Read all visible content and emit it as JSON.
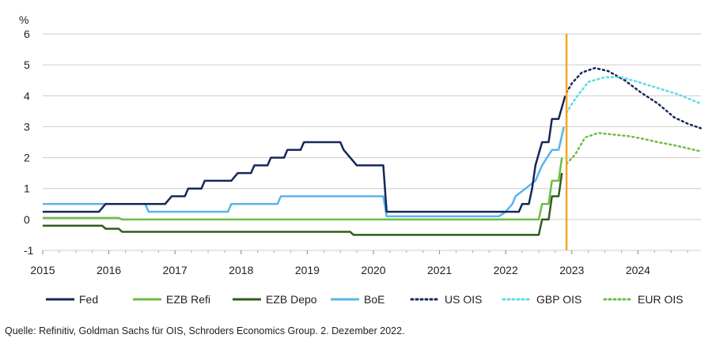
{
  "chart_data": {
    "type": "line",
    "ylabel": "%",
    "ylim": [
      -1,
      6
    ],
    "yticks": [
      -1,
      0,
      1,
      2,
      3,
      4,
      5,
      6
    ],
    "xlim": [
      2015,
      2025
    ],
    "xticks": [
      2015,
      2016,
      2017,
      2018,
      2019,
      2020,
      2021,
      2022,
      2023,
      2024
    ],
    "grid": "horizontal",
    "legend_position": "bottom",
    "vertical_marker": {
      "x": 2022.92,
      "color": "#f5a623"
    },
    "series": [
      {
        "name": "Fed",
        "color": "#14285a",
        "style": "solid",
        "points": [
          [
            2015,
            0.25
          ],
          [
            2015.85,
            0.25
          ],
          [
            2015.95,
            0.5
          ],
          [
            2016.85,
            0.5
          ],
          [
            2016.95,
            0.75
          ],
          [
            2017.15,
            0.75
          ],
          [
            2017.2,
            1.0
          ],
          [
            2017.4,
            1.0
          ],
          [
            2017.45,
            1.25
          ],
          [
            2017.85,
            1.25
          ],
          [
            2017.95,
            1.5
          ],
          [
            2018.15,
            1.5
          ],
          [
            2018.2,
            1.75
          ],
          [
            2018.4,
            1.75
          ],
          [
            2018.45,
            2.0
          ],
          [
            2018.65,
            2.0
          ],
          [
            2018.7,
            2.25
          ],
          [
            2018.9,
            2.25
          ],
          [
            2018.95,
            2.5
          ],
          [
            2019.5,
            2.5
          ],
          [
            2019.55,
            2.25
          ],
          [
            2019.65,
            2.0
          ],
          [
            2019.75,
            1.75
          ],
          [
            2020.15,
            1.75
          ],
          [
            2020.2,
            0.25
          ],
          [
            2022.2,
            0.25
          ],
          [
            2022.25,
            0.5
          ],
          [
            2022.35,
            0.5
          ],
          [
            2022.4,
            1.0
          ],
          [
            2022.45,
            1.75
          ],
          [
            2022.55,
            2.5
          ],
          [
            2022.65,
            2.5
          ],
          [
            2022.7,
            3.25
          ],
          [
            2022.8,
            3.25
          ],
          [
            2022.9,
            4.0
          ]
        ]
      },
      {
        "name": "EZB Refi",
        "color": "#6cbd45",
        "style": "solid",
        "points": [
          [
            2015,
            0.05
          ],
          [
            2016.15,
            0.05
          ],
          [
            2016.2,
            0.0
          ],
          [
            2022.5,
            0.0
          ],
          [
            2022.55,
            0.5
          ],
          [
            2022.65,
            0.5
          ],
          [
            2022.7,
            1.25
          ],
          [
            2022.8,
            1.25
          ],
          [
            2022.85,
            2.0
          ]
        ]
      },
      {
        "name": "EZB Depo",
        "color": "#2e5c1f",
        "style": "solid",
        "points": [
          [
            2015,
            -0.2
          ],
          [
            2015.9,
            -0.2
          ],
          [
            2015.95,
            -0.3
          ],
          [
            2016.15,
            -0.3
          ],
          [
            2016.2,
            -0.4
          ],
          [
            2019.65,
            -0.4
          ],
          [
            2019.7,
            -0.5
          ],
          [
            2022.5,
            -0.5
          ],
          [
            2022.55,
            0.0
          ],
          [
            2022.65,
            0.0
          ],
          [
            2022.7,
            0.75
          ],
          [
            2022.8,
            0.75
          ],
          [
            2022.85,
            1.5
          ]
        ]
      },
      {
        "name": "BoE",
        "color": "#5ab4ea",
        "style": "solid",
        "points": [
          [
            2015,
            0.5
          ],
          [
            2016.55,
            0.5
          ],
          [
            2016.6,
            0.25
          ],
          [
            2017.8,
            0.25
          ],
          [
            2017.85,
            0.5
          ],
          [
            2018.55,
            0.5
          ],
          [
            2018.6,
            0.75
          ],
          [
            2020.15,
            0.75
          ],
          [
            2020.2,
            0.1
          ],
          [
            2021.9,
            0.1
          ],
          [
            2022.0,
            0.25
          ],
          [
            2022.1,
            0.5
          ],
          [
            2022.15,
            0.75
          ],
          [
            2022.3,
            1.0
          ],
          [
            2022.45,
            1.25
          ],
          [
            2022.55,
            1.75
          ],
          [
            2022.7,
            2.25
          ],
          [
            2022.8,
            2.25
          ],
          [
            2022.88,
            3.0
          ]
        ]
      },
      {
        "name": "US OIS",
        "color": "#14285a",
        "style": "dotted",
        "points": [
          [
            2022.92,
            4.1
          ],
          [
            2023.0,
            4.4
          ],
          [
            2023.15,
            4.75
          ],
          [
            2023.35,
            4.9
          ],
          [
            2023.55,
            4.8
          ],
          [
            2023.8,
            4.5
          ],
          [
            2024.05,
            4.1
          ],
          [
            2024.3,
            3.75
          ],
          [
            2024.55,
            3.3
          ],
          [
            2024.75,
            3.1
          ],
          [
            2024.95,
            2.95
          ]
        ]
      },
      {
        "name": "GBP OIS",
        "color": "#5bdce8",
        "style": "dotted",
        "points": [
          [
            2022.92,
            3.45
          ],
          [
            2023.05,
            3.9
          ],
          [
            2023.25,
            4.45
          ],
          [
            2023.5,
            4.6
          ],
          [
            2023.75,
            4.6
          ],
          [
            2024.0,
            4.45
          ],
          [
            2024.3,
            4.25
          ],
          [
            2024.6,
            4.05
          ],
          [
            2024.95,
            3.75
          ]
        ]
      },
      {
        "name": "EUR OIS",
        "color": "#6cbd45",
        "style": "dotted",
        "points": [
          [
            2022.92,
            1.8
          ],
          [
            2023.05,
            2.1
          ],
          [
            2023.2,
            2.65
          ],
          [
            2023.4,
            2.8
          ],
          [
            2023.6,
            2.75
          ],
          [
            2023.85,
            2.7
          ],
          [
            2024.1,
            2.6
          ],
          [
            2024.3,
            2.5
          ],
          [
            2024.55,
            2.4
          ],
          [
            2024.95,
            2.2
          ]
        ]
      }
    ]
  },
  "source_text": "Quelle: Refinitiv, Goldman Sachs für OIS, Schroders Economics Group. 2. Dezember 2022."
}
